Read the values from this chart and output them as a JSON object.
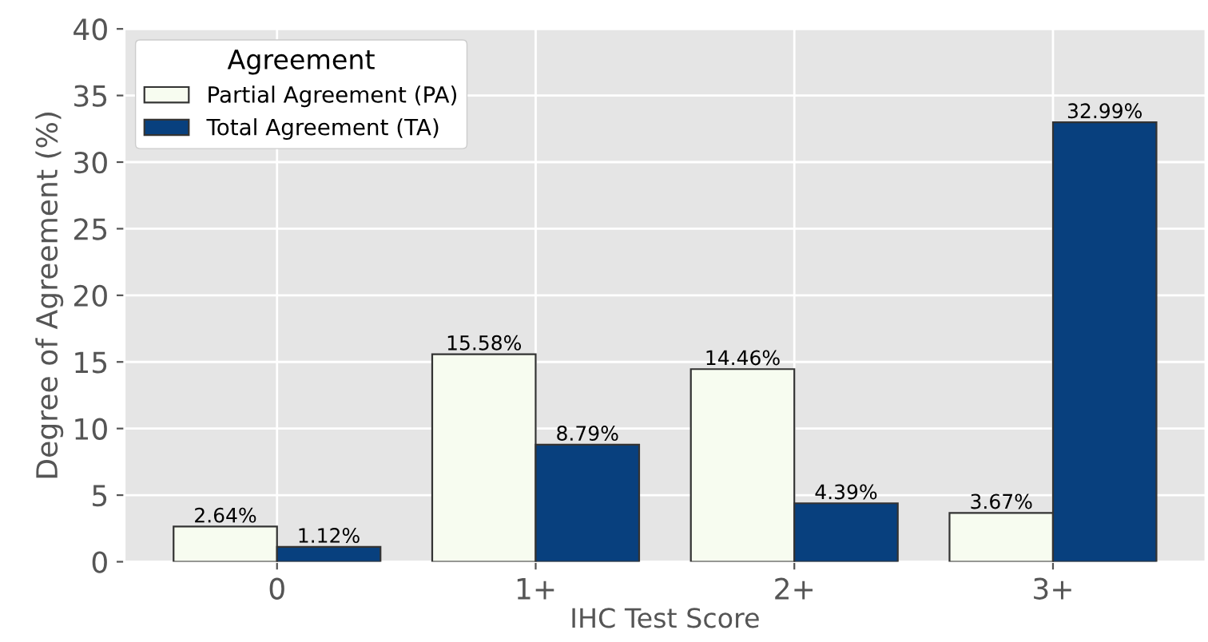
{
  "chart_data": {
    "type": "bar",
    "xlabel": "IHC Test Score",
    "ylabel": "Degree of Agreement (%)",
    "legend_title": "Agreement",
    "categories": [
      "0",
      "1+",
      "2+",
      "3+"
    ],
    "series": [
      {
        "name": "Partial Agreement (PA)",
        "color": "#f7fcf0",
        "values": [
          2.64,
          15.58,
          14.46,
          3.67
        ],
        "value_labels": [
          "2.64%",
          "15.58%",
          "14.46%",
          "3.67%"
        ]
      },
      {
        "name": "Total Agreement (TA)",
        "color": "#08407e",
        "values": [
          1.12,
          8.79,
          4.39,
          32.99
        ],
        "value_labels": [
          "1.12%",
          "8.79%",
          "4.39%",
          "32.99%"
        ]
      }
    ],
    "ylim": [
      0,
      40
    ],
    "yticks": [
      0,
      5,
      10,
      15,
      20,
      25,
      30,
      35,
      40
    ],
    "grid": true,
    "legend": "top left"
  }
}
